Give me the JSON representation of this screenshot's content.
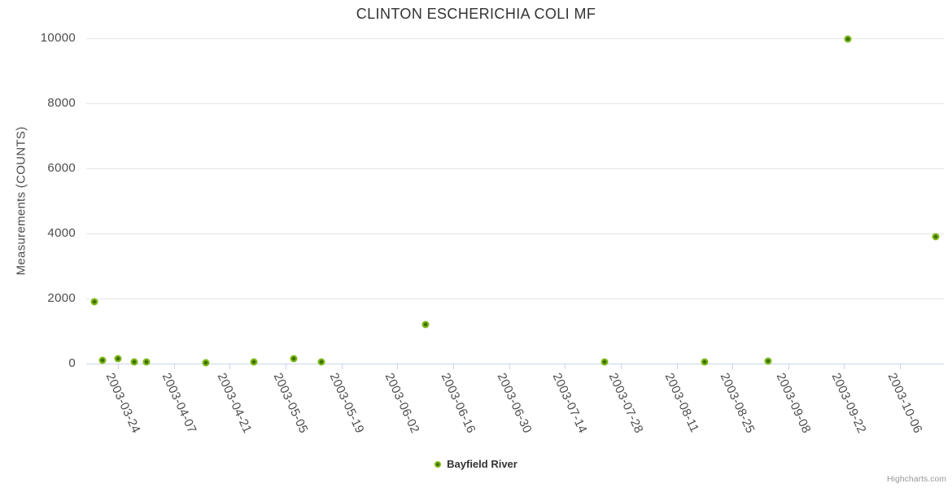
{
  "credits": {
    "text": "Highcharts.com"
  },
  "colors": {
    "series_green": "#7bb717",
    "series_green_dark": "#3e6e00",
    "gridline": "#e6e6e6",
    "axis_line": "#ccd6eb",
    "title_text": "#333333",
    "axis_label_text": "#4d4d4d",
    "credits_text": "#999999"
  },
  "chart_data": {
    "type": "scatter",
    "title": "CLINTON ESCHERICHIA COLI MF",
    "xlabel": "",
    "ylabel": "Measurements (COUNTS)",
    "ylim": [
      0,
      10000
    ],
    "y_ticks": [
      0,
      2000,
      4000,
      6000,
      8000,
      10000
    ],
    "x_min": "2003-03-16",
    "x_max": "2003-10-17",
    "x_ticks": [
      "2003-03-24",
      "2003-04-07",
      "2003-04-21",
      "2003-05-05",
      "2003-05-19",
      "2003-06-02",
      "2003-06-16",
      "2003-06-30",
      "2003-07-14",
      "2003-07-28",
      "2003-08-11",
      "2003-08-25",
      "2003-09-08",
      "2003-09-22",
      "2003-10-06"
    ],
    "grid": "horizontal",
    "legend_position": "bottom-center",
    "series": [
      {
        "name": "Bayfield River",
        "color": "#7bb717",
        "points": [
          [
            "2003-03-18",
            1900
          ],
          [
            "2003-03-20",
            100
          ],
          [
            "2003-03-24",
            150
          ],
          [
            "2003-03-28",
            50
          ],
          [
            "2003-03-31",
            40
          ],
          [
            "2003-04-15",
            30
          ],
          [
            "2003-04-27",
            40
          ],
          [
            "2003-05-07",
            150
          ],
          [
            "2003-05-14",
            55
          ],
          [
            "2003-06-09",
            1200
          ],
          [
            "2003-07-24",
            60
          ],
          [
            "2003-08-18",
            50
          ],
          [
            "2003-09-03",
            75
          ],
          [
            "2003-09-23",
            9980
          ],
          [
            "2003-10-15",
            3900
          ]
        ]
      }
    ]
  }
}
